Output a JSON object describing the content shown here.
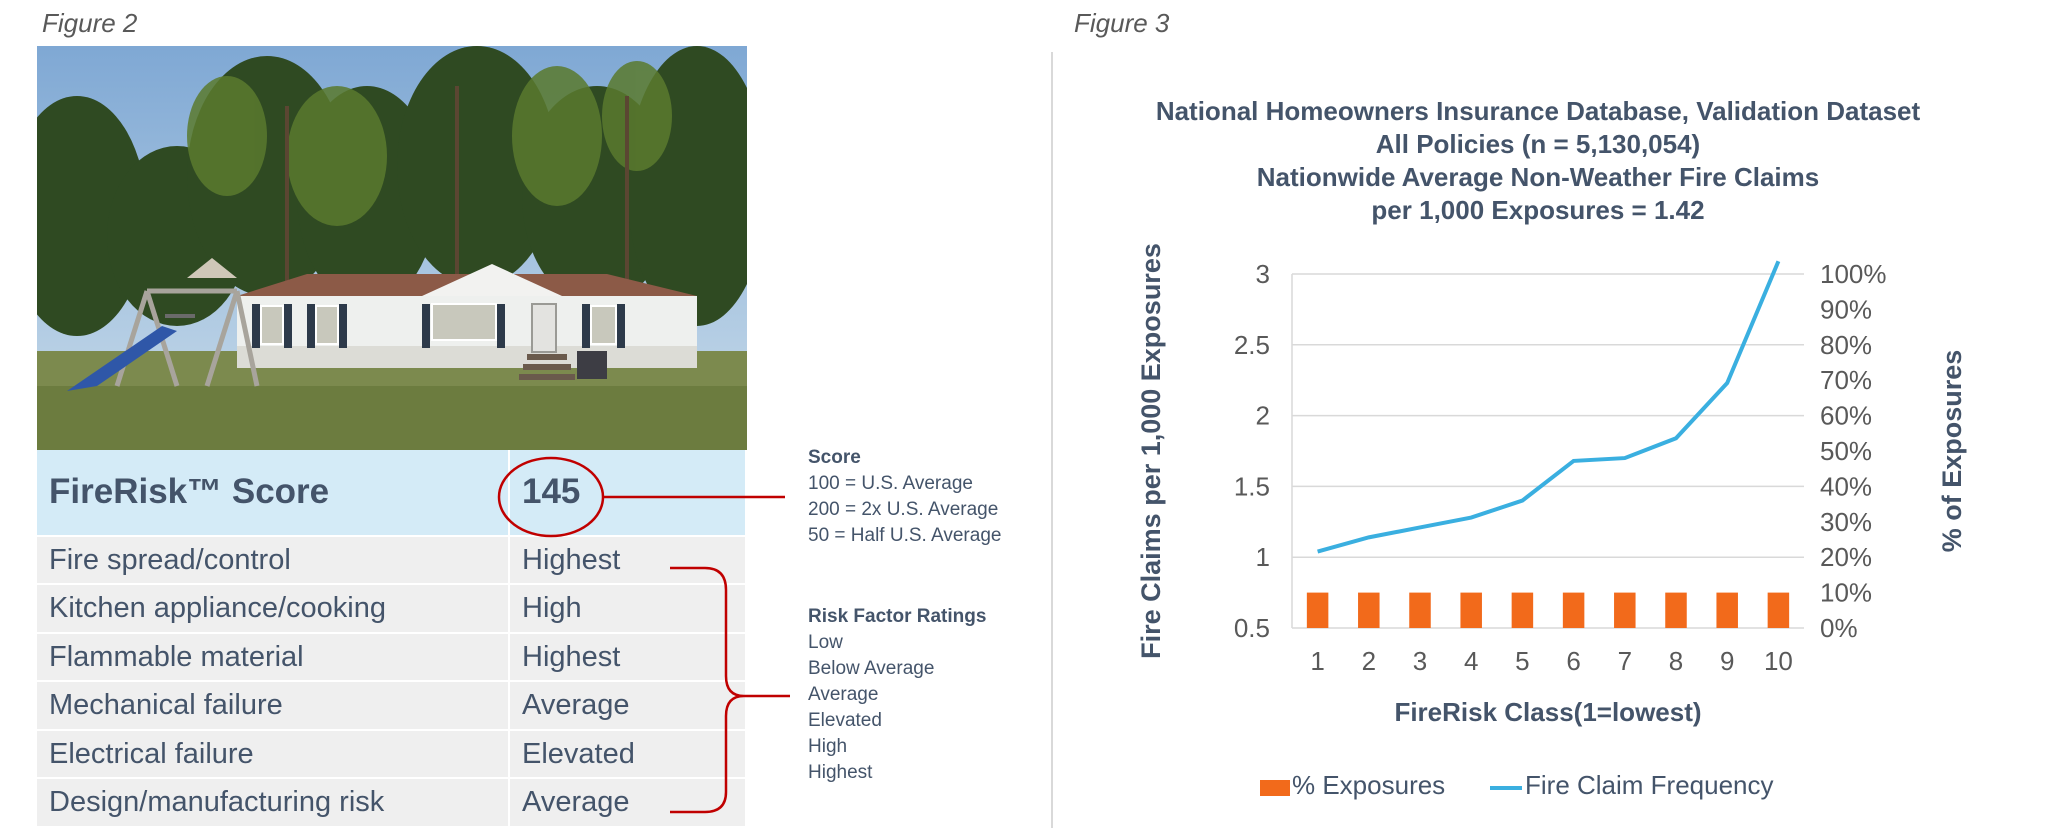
{
  "figure2": {
    "label": "Figure 2",
    "photo_alt": "white single-story manufactured home with trees and a swing set",
    "score_label": "FireRisk™ Score",
    "score_value": "145",
    "risk_factors": [
      {
        "name": "Fire spread/control",
        "rating": "Highest"
      },
      {
        "name": "Kitchen appliance/cooking",
        "rating": "High"
      },
      {
        "name": "Flammable material",
        "rating": "Highest"
      },
      {
        "name": "Mechanical failure",
        "rating": "Average"
      },
      {
        "name": "Electrical failure",
        "rating": "Elevated"
      },
      {
        "name": "Design/manufacturing risk",
        "rating": "Average"
      }
    ],
    "score_note": {
      "title": "Score",
      "lines": [
        "100 = U.S. Average",
        "200 = 2x U.S. Average",
        "50 = Half U.S. Average"
      ]
    },
    "ratings_note": {
      "title": "Risk Factor Ratings",
      "lines": [
        "Low",
        "Below Average",
        "Average",
        "Elevated",
        "High",
        "Highest"
      ]
    },
    "colors": {
      "score_bg": "#d4ebf7",
      "row_bg": "#efefef",
      "bracket": "#c00000"
    }
  },
  "figure3": {
    "label": "Figure 3",
    "chart_data": {
      "type": "bar",
      "title": "National Homeowners Insurance Database, Validation Dataset",
      "title_lines": [
        "National Homeowners Insurance Database, Validation Dataset",
        "All Policies (n = 5,130,054)",
        "Nationwide Average Non-Weather Fire Claims",
        "per 1,000 Exposures = 1.42"
      ],
      "xlabel": "FireRisk Class(1=lowest)",
      "ylabel": "Fire Claims per 1,000 Exposures",
      "y2label": "% of Exposures",
      "categories": [
        "1",
        "2",
        "3",
        "4",
        "5",
        "6",
        "7",
        "8",
        "9",
        "10"
      ],
      "ylim": [
        0.5,
        3
      ],
      "yticks": [
        "0.5",
        "1",
        "1.5",
        "2",
        "2.5",
        "3"
      ],
      "y2lim": [
        0,
        100
      ],
      "y2ticks": [
        "0%",
        "10%",
        "20%",
        "30%",
        "40%",
        "50%",
        "60%",
        "70%",
        "80%",
        "90%",
        "100%"
      ],
      "grid": true,
      "legend_position": "bottom",
      "series": [
        {
          "name": "% Exposures",
          "type": "bar",
          "axis": "right",
          "color": "#f26a1b",
          "values": [
            10,
            10,
            10,
            10,
            10,
            10,
            10,
            10,
            10,
            10
          ]
        },
        {
          "name": "Fire Claim Frequency",
          "type": "line",
          "axis": "left",
          "color": "#3aafe0",
          "values": [
            1.04,
            1.14,
            1.21,
            1.28,
            1.4,
            1.68,
            1.7,
            1.84,
            2.23,
            3.09
          ]
        }
      ]
    }
  }
}
